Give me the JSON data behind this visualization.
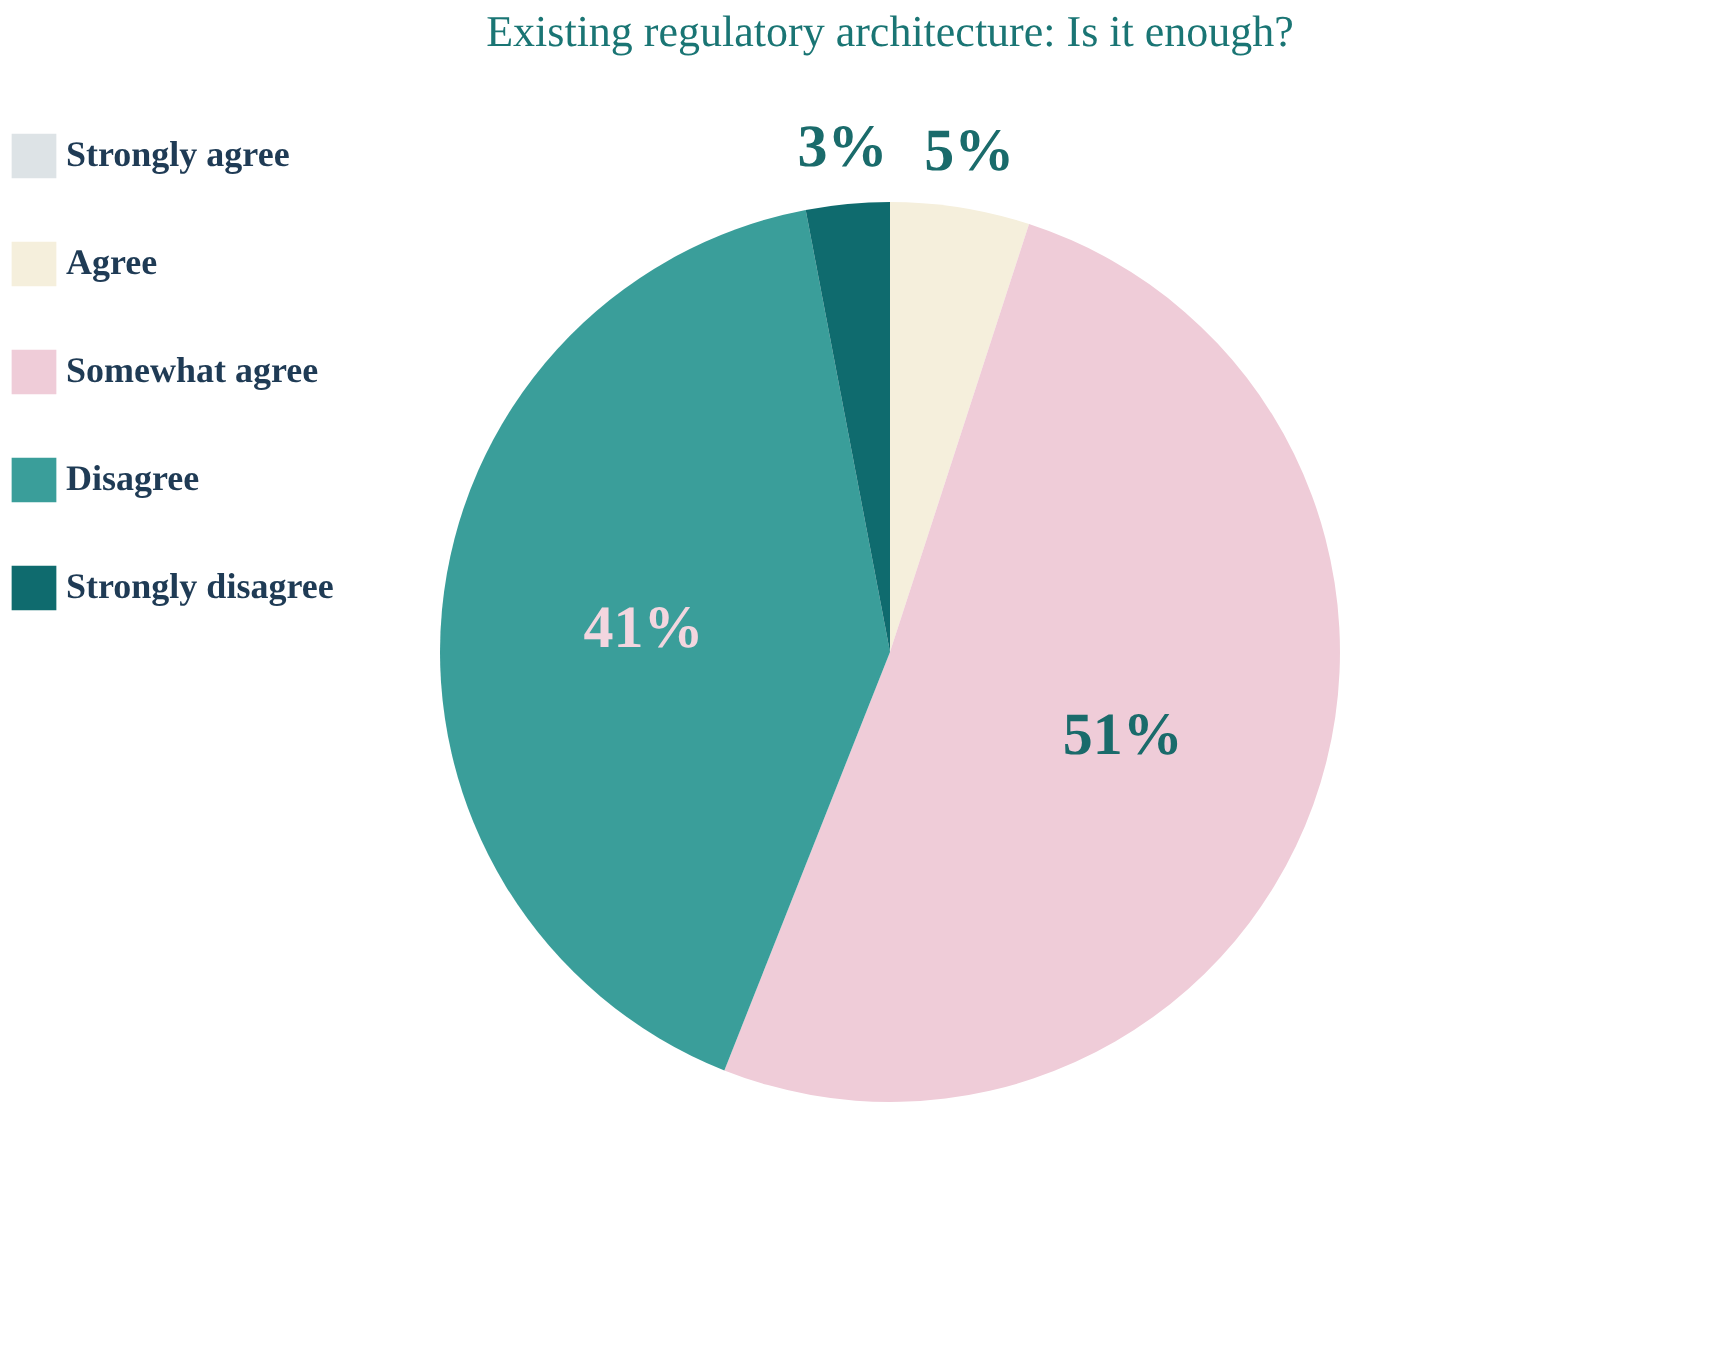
{
  "chart_data": {
    "type": "pie",
    "title": "Existing regulatory architecture: Is it enough?",
    "categories": [
      "Strongly agree",
      "Agree",
      "Somewhat agree",
      "Disagree",
      "Strongly disagree"
    ],
    "values": [
      0,
      5,
      51,
      41,
      3
    ],
    "colors": [
      "#dde3e6",
      "#f5efdc",
      "#efccd8",
      "#3a9e9a",
      "#0f6b6e"
    ],
    "value_labels": [
      null,
      "5%",
      "51%",
      "41%",
      "3%"
    ],
    "legend": "left"
  }
}
